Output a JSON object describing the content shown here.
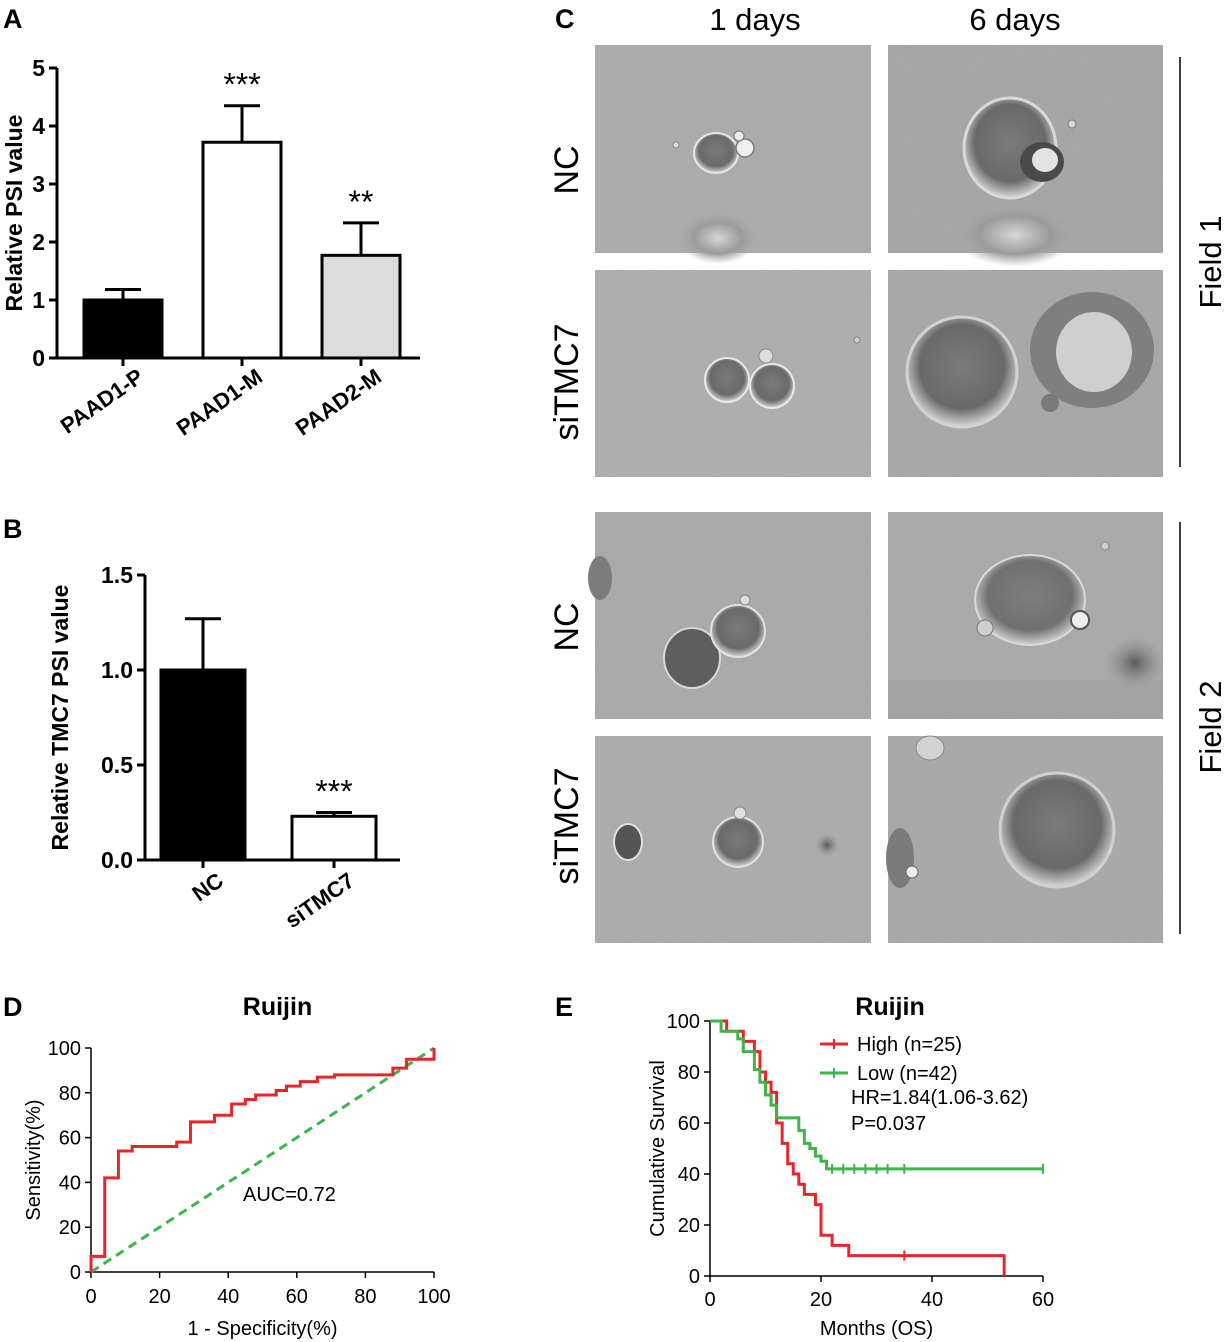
{
  "panels": {
    "A": "A",
    "B": "B",
    "C": "C",
    "D": "D",
    "E": "E"
  },
  "chart_data": [
    {
      "id": "A",
      "type": "bar",
      "categories": [
        "PAAD1-P",
        "PAAD1-M",
        "PAAD2-M"
      ],
      "values": [
        1.0,
        3.72,
        1.77
      ],
      "errors": [
        0.18,
        0.63,
        0.56
      ],
      "significance": [
        "",
        "***",
        "**"
      ],
      "bar_colors": [
        "#000000",
        "#ffffff",
        "#dcdcdc"
      ],
      "ylabel": "Relative PSI value",
      "ylim": [
        0,
        5
      ],
      "yticks": [
        "0",
        "1",
        "2",
        "3",
        "4",
        "5"
      ]
    },
    {
      "id": "B",
      "type": "bar",
      "categories": [
        "NC",
        "siTMC7"
      ],
      "values": [
        1.0,
        0.23
      ],
      "errors": [
        0.27,
        0.02
      ],
      "significance": [
        "",
        "***"
      ],
      "bar_colors": [
        "#000000",
        "#ffffff"
      ],
      "ylabel": "Relative TMC7 PSI value",
      "ylim": [
        0,
        1.5
      ],
      "yticks": [
        "0.0",
        "0.5",
        "1.0",
        "1.5"
      ]
    },
    {
      "id": "D",
      "type": "line",
      "title": "Ruijin",
      "xlabel": "1 - Specificity(%)",
      "ylabel": "Sensitivity(%)",
      "xlim": [
        0,
        100
      ],
      "ylim": [
        0,
        100
      ],
      "xticks": [
        "0",
        "20",
        "40",
        "60",
        "80",
        "100"
      ],
      "yticks": [
        "0",
        "20",
        "40",
        "60",
        "80",
        "100"
      ],
      "annotation": "AUC=0.72",
      "roc": [
        [
          0,
          0
        ],
        [
          0,
          7
        ],
        [
          4,
          7
        ],
        [
          4,
          42
        ],
        [
          8,
          42
        ],
        [
          8,
          54
        ],
        [
          12,
          54
        ],
        [
          12,
          56
        ],
        [
          25,
          56
        ],
        [
          25,
          58
        ],
        [
          29,
          58
        ],
        [
          29,
          67
        ],
        [
          36,
          67
        ],
        [
          36,
          70
        ],
        [
          41,
          70
        ],
        [
          41,
          75
        ],
        [
          45,
          75
        ],
        [
          45,
          77
        ],
        [
          48,
          77
        ],
        [
          48,
          79
        ],
        [
          54,
          79
        ],
        [
          54,
          81
        ],
        [
          57,
          81
        ],
        [
          57,
          83
        ],
        [
          61,
          83
        ],
        [
          61,
          85
        ],
        [
          66,
          85
        ],
        [
          66,
          87
        ],
        [
          71,
          87
        ],
        [
          71,
          88
        ],
        [
          88,
          88
        ],
        [
          88,
          91
        ],
        [
          92,
          91
        ],
        [
          92,
          95
        ],
        [
          100,
          95
        ],
        [
          100,
          100
        ]
      ],
      "diagonal_color": "#3db54a",
      "roc_color": "#e8262a"
    },
    {
      "id": "E",
      "type": "line",
      "title": "Ruijin",
      "xlabel": "Months (OS)",
      "ylabel": "Cumulative Survival",
      "xlim": [
        0,
        60
      ],
      "ylim": [
        0,
        100
      ],
      "xticks": [
        "0",
        "20",
        "40",
        "60"
      ],
      "yticks": [
        "0",
        "20",
        "40",
        "60",
        "80",
        "100"
      ],
      "hr_text": "HR=1.84(1.06-3.62)",
      "p_text": "P=0.037",
      "series": [
        {
          "name": "High (n=25)",
          "color": "#e8262a",
          "steps": [
            [
              0,
              100
            ],
            [
              3,
              100
            ],
            [
              3,
              96
            ],
            [
              6,
              96
            ],
            [
              6,
              92
            ],
            [
              8,
              92
            ],
            [
              8,
              88
            ],
            [
              9,
              88
            ],
            [
              9,
              80
            ],
            [
              10,
              80
            ],
            [
              10,
              76
            ],
            [
              11,
              76
            ],
            [
              11,
              72
            ],
            [
              12,
              72
            ],
            [
              12,
              60
            ],
            [
              13,
              60
            ],
            [
              13,
              52
            ],
            [
              14,
              52
            ],
            [
              14,
              44
            ],
            [
              15,
              44
            ],
            [
              15,
              40
            ],
            [
              16,
              40
            ],
            [
              16,
              36
            ],
            [
              17,
              36
            ],
            [
              17,
              32
            ],
            [
              19,
              32
            ],
            [
              19,
              28
            ],
            [
              20,
              28
            ],
            [
              20,
              16
            ],
            [
              22,
              16
            ],
            [
              22,
              12
            ],
            [
              25,
              12
            ],
            [
              25,
              8
            ],
            [
              53,
              8
            ],
            [
              53,
              0
            ]
          ],
          "censors": [
            [
              35,
              8
            ]
          ]
        },
        {
          "name": "Low (n=42)",
          "color": "#3db54a",
          "steps": [
            [
              0,
              100
            ],
            [
              2,
              100
            ],
            [
              2,
              96
            ],
            [
              5,
              96
            ],
            [
              5,
              93
            ],
            [
              6,
              93
            ],
            [
              6,
              88
            ],
            [
              8,
              88
            ],
            [
              8,
              81
            ],
            [
              9,
              81
            ],
            [
              9,
              76
            ],
            [
              10,
              76
            ],
            [
              10,
              71
            ],
            [
              11,
              71
            ],
            [
              11,
              67
            ],
            [
              12,
              67
            ],
            [
              12,
              62
            ],
            [
              16,
              62
            ],
            [
              16,
              57
            ],
            [
              17,
              57
            ],
            [
              17,
              52
            ],
            [
              18,
              52
            ],
            [
              18,
              50
            ],
            [
              19,
              50
            ],
            [
              19,
              47
            ],
            [
              20,
              47
            ],
            [
              20,
              45
            ],
            [
              21,
              45
            ],
            [
              21,
              42
            ],
            [
              60,
              42
            ]
          ],
          "censors": [
            [
              22,
              42
            ],
            [
              24,
              42
            ],
            [
              26,
              42
            ],
            [
              28,
              42
            ],
            [
              30,
              42
            ],
            [
              32,
              42
            ],
            [
              35,
              42
            ],
            [
              60,
              42
            ]
          ]
        }
      ]
    }
  ],
  "panel_c": {
    "col_headers": [
      "1 days",
      "6 days"
    ],
    "row_labels": [
      "NC",
      "siTMC7",
      "NC",
      "siTMC7"
    ],
    "field_labels": [
      "Field 1",
      "Field 2"
    ]
  }
}
